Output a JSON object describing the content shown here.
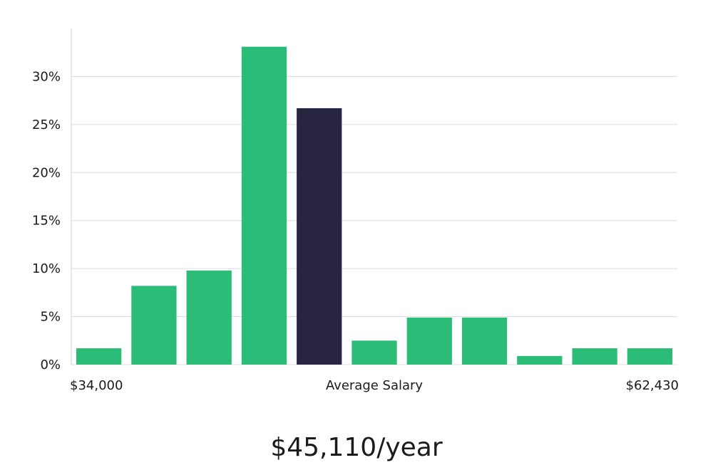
{
  "chart_data": {
    "type": "bar",
    "categories": [
      "1",
      "2",
      "3",
      "4",
      "5",
      "6",
      "7",
      "8",
      "9",
      "10",
      "11"
    ],
    "values": [
      1.7,
      8.2,
      9.8,
      33.1,
      26.7,
      2.5,
      4.9,
      4.9,
      0.9,
      1.7,
      1.7
    ],
    "highlight_index": 4,
    "ylim": [
      0,
      35
    ],
    "yticks": [
      0,
      5,
      10,
      15,
      20,
      25,
      30
    ],
    "ytick_labels": [
      "0%",
      "5%",
      "10%",
      "15%",
      "20%",
      "25%",
      "30%"
    ],
    "x_min_label": "$34,000",
    "x_center_label": "Average Salary",
    "x_max_label": "$62,430",
    "grid": true,
    "colors": {
      "bar": "#2bbd77",
      "highlight": "#272542",
      "grid": "#dcdcdc"
    }
  },
  "salary": {
    "text": "$45,110/year"
  }
}
